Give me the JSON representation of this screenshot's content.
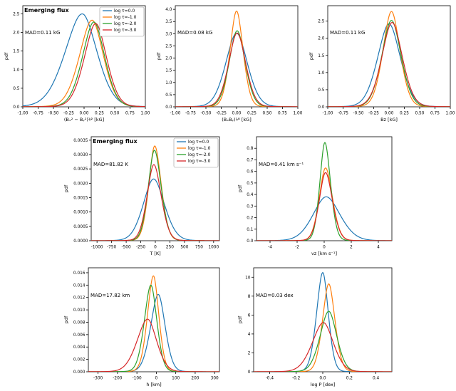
{
  "figure": {
    "background": "#ffffff",
    "description": "Seven-panel PDF comparison figure for emerging flux at four optical depths"
  },
  "palette": {
    "tau0": "#1f77b4",
    "tau1": "#ff7f0e",
    "tau2": "#2ca02c",
    "tau3": "#d62728",
    "axis": "#000000",
    "legend_border": "#999999"
  },
  "legend_labels": [
    "log τ=0.0",
    "log τ=-1.0",
    "log τ=-2.0",
    "log τ=-3.0"
  ],
  "chart_data": [
    {
      "type": "line",
      "title": "Emerging flux",
      "mad": "MAD=0.11 kG",
      "mad_y_frac": 0.28,
      "xlabel": "(Bₓ² − Bᵧ²)¹⁄² [kG]",
      "ylabel": "pdf",
      "xlim": [
        -1.0,
        1.0
      ],
      "ylim": [
        0,
        2.72
      ],
      "xticks": [
        -1.0,
        -0.75,
        -0.5,
        -0.25,
        0,
        0.25,
        0.5,
        0.75,
        1.0
      ],
      "xtick_labels": [
        "-1.00",
        "-0.75",
        "-0.50",
        "-0.25",
        "0.00",
        "0.25",
        "0.50",
        "0.75",
        "1.00"
      ],
      "yticks": [
        0,
        0.5,
        1.0,
        1.5,
        2.0,
        2.5
      ],
      "ytick_labels": [
        "0.0",
        "0.5",
        "1.0",
        "1.5",
        "2.0",
        "2.5"
      ],
      "legend": true,
      "grid": false,
      "series": [
        {
          "name": "log τ=0.0",
          "color": "#1f77b4",
          "center": -0.03,
          "sigma_l": 0.3,
          "sigma_r": 0.26,
          "peak": 2.5
        },
        {
          "name": "log τ=-1.0",
          "color": "#ff7f0e",
          "center": 0.13,
          "sigma_l": 0.22,
          "sigma_r": 0.2,
          "peak": 2.33
        },
        {
          "name": "log τ=-2.0",
          "color": "#2ca02c",
          "center": 0.16,
          "sigma_l": 0.2,
          "sigma_r": 0.19,
          "peak": 2.28
        },
        {
          "name": "log τ=-3.0",
          "color": "#d62728",
          "center": 0.19,
          "sigma_l": 0.2,
          "sigma_r": 0.19,
          "peak": 2.24
        }
      ]
    },
    {
      "type": "line",
      "title": "",
      "mad": "MAD=0.08 kG",
      "mad_y_frac": 0.28,
      "xlabel": "(BₓBᵧ)¹⁄² [kG]",
      "ylabel": "pdf",
      "xlim": [
        -1.0,
        1.0
      ],
      "ylim": [
        0,
        4.15
      ],
      "xticks": [
        -1.0,
        -0.75,
        -0.5,
        -0.25,
        0,
        0.25,
        0.5,
        0.75,
        1.0
      ],
      "xtick_labels": [
        "-1.00",
        "-0.75",
        "-0.50",
        "-0.25",
        "0.00",
        "0.25",
        "0.50",
        "0.75",
        "1.00"
      ],
      "yticks": [
        0,
        0.5,
        1.0,
        1.5,
        2.0,
        2.5,
        3.0,
        3.5,
        4.0
      ],
      "ytick_labels": [
        "0.0",
        "0.5",
        "1.0",
        "1.5",
        "2.0",
        "2.5",
        "3.0",
        "3.5",
        "4.0"
      ],
      "legend": false,
      "grid": false,
      "series": [
        {
          "name": "log τ=0.0",
          "color": "#1f77b4",
          "center": 0.0,
          "sigma_l": 0.19,
          "sigma_r": 0.19,
          "peak": 3.02
        },
        {
          "name": "log τ=-1.0",
          "color": "#ff7f0e",
          "center": 0.0,
          "sigma_l": 0.115,
          "sigma_r": 0.115,
          "peak": 3.93
        },
        {
          "name": "log τ=-2.0",
          "color": "#2ca02c",
          "center": 0.01,
          "sigma_l": 0.14,
          "sigma_r": 0.14,
          "peak": 3.12
        },
        {
          "name": "log τ=-3.0",
          "color": "#d62728",
          "center": 0.01,
          "sigma_l": 0.15,
          "sigma_r": 0.15,
          "peak": 3.03
        }
      ]
    },
    {
      "type": "line",
      "title": "",
      "mad": "MAD=0.11 kG",
      "mad_y_frac": 0.28,
      "xlabel": "Bz [kG]",
      "ylabel": "pdf",
      "xlim": [
        -1.0,
        1.0
      ],
      "ylim": [
        0,
        2.95
      ],
      "xticks": [
        -1.0,
        -0.75,
        -0.5,
        -0.25,
        0,
        0.25,
        0.5,
        0.75,
        1.0
      ],
      "xtick_labels": [
        "-1.00",
        "-0.75",
        "-0.50",
        "-0.25",
        "0.00",
        "0.25",
        "0.50",
        "0.75",
        "1.00"
      ],
      "yticks": [
        0,
        0.5,
        1.0,
        1.5,
        2.0,
        2.5
      ],
      "ytick_labels": [
        "0.0",
        "0.5",
        "1.0",
        "1.5",
        "2.0",
        "2.5"
      ],
      "legend": false,
      "grid": false,
      "series": [
        {
          "name": "log τ=0.0",
          "color": "#1f77b4",
          "center": 0.0,
          "sigma_l": 0.2,
          "sigma_r": 0.2,
          "peak": 2.42
        },
        {
          "name": "log τ=-1.0",
          "color": "#ff7f0e",
          "center": 0.04,
          "sigma_l": 0.15,
          "sigma_r": 0.15,
          "peak": 2.78
        },
        {
          "name": "log τ=-2.0",
          "color": "#2ca02c",
          "center": 0.04,
          "sigma_l": 0.17,
          "sigma_r": 0.17,
          "peak": 2.52
        },
        {
          "name": "log τ=-3.0",
          "color": "#d62728",
          "center": 0.05,
          "sigma_l": 0.18,
          "sigma_r": 0.18,
          "peak": 2.46
        }
      ]
    },
    {
      "type": "line",
      "title": "Emerging flux",
      "mad": "MAD=81.82 K",
      "mad_y_frac": 0.28,
      "xlabel": "T [K]",
      "ylabel": "pdf",
      "xlim": [
        -1100,
        1100
      ],
      "ylim": [
        0,
        0.00362
      ],
      "xticks": [
        -1000,
        -750,
        -500,
        -250,
        0,
        250,
        500,
        750,
        1000
      ],
      "xtick_labels": [
        "-1000",
        "-750",
        "-500",
        "-250",
        "0",
        "250",
        "500",
        "750",
        "1000"
      ],
      "yticks": [
        0,
        0.0005,
        0.001,
        0.0015,
        0.002,
        0.0025,
        0.003,
        0.0035
      ],
      "ytick_labels": [
        "0.0000",
        "0.0005",
        "0.0010",
        "0.0015",
        "0.0020",
        "0.0025",
        "0.0030",
        "0.0035"
      ],
      "legend": true,
      "grid": false,
      "series": [
        {
          "name": "log τ=0.0",
          "color": "#1f77b4",
          "center": -30,
          "sigma_l": 190,
          "sigma_r": 200,
          "peak": 0.00215
        },
        {
          "name": "log τ=-1.0",
          "color": "#ff7f0e",
          "center": -10,
          "sigma_l": 110,
          "sigma_r": 120,
          "peak": 0.0033
        },
        {
          "name": "log τ=-2.0",
          "color": "#2ca02c",
          "center": -15,
          "sigma_l": 115,
          "sigma_r": 125,
          "peak": 0.00315
        },
        {
          "name": "log τ=-3.0",
          "color": "#d62728",
          "center": -25,
          "sigma_l": 125,
          "sigma_r": 135,
          "peak": 0.00265
        }
      ]
    },
    {
      "type": "line",
      "title": "",
      "mad": "MAD=0.41 km s⁻¹",
      "mad_y_frac": 0.28,
      "xlabel": "vz [km s⁻¹]",
      "ylabel": "pdf",
      "xlim": [
        -5,
        5
      ],
      "ylim": [
        0,
        0.9
      ],
      "xticks": [
        -4,
        -2,
        0,
        2,
        4
      ],
      "xtick_labels": [
        "-4",
        "-2",
        "0",
        "2",
        "4"
      ],
      "yticks": [
        0,
        0.1,
        0.2,
        0.3,
        0.4,
        0.5,
        0.6,
        0.7,
        0.8
      ],
      "ytick_labels": [
        "0.0",
        "0.1",
        "0.2",
        "0.3",
        "0.4",
        "0.5",
        "0.6",
        "0.7",
        "0.8"
      ],
      "legend": false,
      "grid": false,
      "series": [
        {
          "name": "log τ=0.0",
          "color": "#1f77b4",
          "center": 0.15,
          "sigma_l": 1.05,
          "sigma_r": 1.1,
          "peak": 0.38
        },
        {
          "name": "log τ=-1.0",
          "color": "#ff7f0e",
          "center": 0.1,
          "sigma_l": 0.5,
          "sigma_r": 0.55,
          "peak": 0.63
        },
        {
          "name": "log τ=-2.0",
          "color": "#2ca02c",
          "center": 0.05,
          "sigma_l": 0.4,
          "sigma_r": 0.45,
          "peak": 0.85
        },
        {
          "name": "log τ=-3.0",
          "color": "#d62728",
          "center": 0.1,
          "sigma_l": 0.5,
          "sigma_r": 0.55,
          "peak": 0.59
        }
      ]
    },
    {
      "type": "line",
      "title": "",
      "mad": "MAD=17.82 km",
      "mad_y_frac": 0.28,
      "xlabel": "h [km]",
      "ylabel": "pdf",
      "xlim": [
        -350,
        325
      ],
      "ylim": [
        0,
        0.0168
      ],
      "xticks": [
        -300,
        -200,
        -100,
        0,
        100,
        200,
        300
      ],
      "xtick_labels": [
        "-300",
        "-200",
        "-100",
        "0",
        "100",
        "200",
        "300"
      ],
      "yticks": [
        0,
        0.002,
        0.004,
        0.006,
        0.008,
        0.01,
        0.012,
        0.014,
        0.016
      ],
      "ytick_labels": [
        "0.000",
        "0.002",
        "0.004",
        "0.006",
        "0.008",
        "0.010",
        "0.012",
        "0.014",
        "0.016"
      ],
      "legend": false,
      "grid": false,
      "series": [
        {
          "name": "log τ=0.0",
          "color": "#1f77b4",
          "center": 10,
          "sigma_l": 42,
          "sigma_r": 38,
          "peak": 0.0125
        },
        {
          "name": "log τ=-1.0",
          "color": "#ff7f0e",
          "center": -15,
          "sigma_l": 33,
          "sigma_r": 30,
          "peak": 0.0155
        },
        {
          "name": "log τ=-2.0",
          "color": "#2ca02c",
          "center": -28,
          "sigma_l": 36,
          "sigma_r": 33,
          "peak": 0.014
        },
        {
          "name": "log τ=-3.0",
          "color": "#d62728",
          "center": -45,
          "sigma_l": 58,
          "sigma_r": 50,
          "peak": 0.0085
        }
      ]
    },
    {
      "type": "line",
      "title": "",
      "mad": "MAD=0.03 dex",
      "mad_y_frac": 0.28,
      "xlabel": "log P [dex]",
      "ylabel": "pdf",
      "xlim": [
        -0.52,
        0.52
      ],
      "ylim": [
        0,
        11
      ],
      "xticks": [
        -0.4,
        -0.2,
        0.0,
        0.2,
        0.4
      ],
      "xtick_labels": [
        "-0.4",
        "-0.2",
        "0.0",
        "0.2",
        "0.4"
      ],
      "yticks": [
        0,
        2,
        4,
        6,
        8,
        10
      ],
      "ytick_labels": [
        "0",
        "2",
        "4",
        "6",
        "8",
        "10"
      ],
      "legend": false,
      "grid": false,
      "series": [
        {
          "name": "log τ=0.0",
          "color": "#1f77b4",
          "center": 0.0,
          "sigma_l": 0.05,
          "sigma_r": 0.045,
          "peak": 10.5
        },
        {
          "name": "log τ=-1.0",
          "color": "#ff7f0e",
          "center": 0.045,
          "sigma_l": 0.05,
          "sigma_r": 0.05,
          "peak": 9.3
        },
        {
          "name": "log τ=-2.0",
          "color": "#2ca02c",
          "center": 0.045,
          "sigma_l": 0.07,
          "sigma_r": 0.065,
          "peak": 6.4
        },
        {
          "name": "log τ=-3.0",
          "color": "#d62728",
          "center": 0.005,
          "sigma_l": 0.09,
          "sigma_r": 0.08,
          "peak": 5.2
        }
      ]
    }
  ]
}
